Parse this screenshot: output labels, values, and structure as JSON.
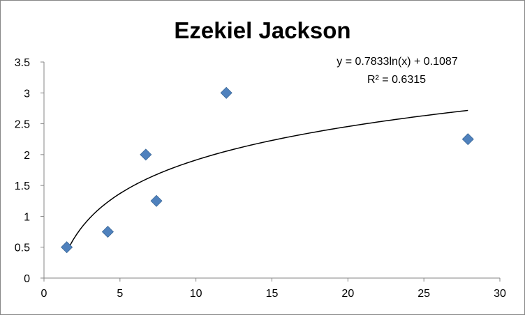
{
  "chart_data": {
    "type": "scatter",
    "title": "Ezekiel Jackson",
    "xlabel": "",
    "ylabel": "",
    "xlim": [
      0,
      30
    ],
    "ylim": [
      0,
      3.5
    ],
    "x_ticks": [
      "0",
      "5",
      "10",
      "15",
      "20",
      "25",
      "30"
    ],
    "y_ticks": [
      "0",
      "0.5",
      "1",
      "1.5",
      "2",
      "2.5",
      "3",
      "3.5"
    ],
    "x_tick_values": [
      0,
      5,
      10,
      15,
      20,
      25,
      30
    ],
    "y_tick_values": [
      0,
      0.5,
      1,
      1.5,
      2,
      2.5,
      3,
      3.5
    ],
    "grid": false,
    "legend": "none",
    "series": [
      {
        "marker": "diamond",
        "color": "#4f81bd",
        "points": [
          {
            "x": 1.5,
            "y": 0.5
          },
          {
            "x": 4.2,
            "y": 0.75
          },
          {
            "x": 6.7,
            "y": 2.0
          },
          {
            "x": 7.4,
            "y": 1.25
          },
          {
            "x": 12.0,
            "y": 3.0
          },
          {
            "x": 27.9,
            "y": 2.25
          }
        ]
      }
    ],
    "trendline": {
      "type": "logarithmic",
      "a": 0.7833,
      "b": 0.1087,
      "x_start": 1.5,
      "x_end": 27.9,
      "color": "#000000",
      "equation_label": "y = 0.7833ln(x) + 0.1087",
      "r2_label": "R² = 0.6315"
    }
  }
}
